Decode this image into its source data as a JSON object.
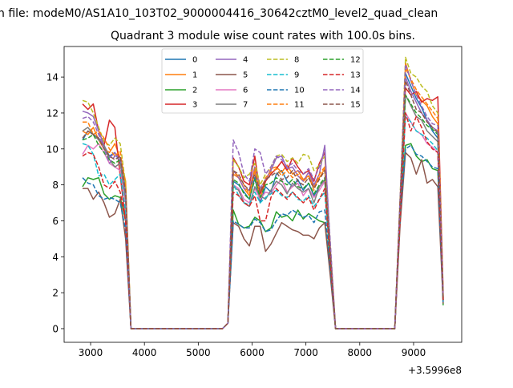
{
  "chart_data": {
    "type": "line",
    "suptitle": "n file: modeM0/AS1A10_103T02_9000004416_30642cztM0_level2_quad_clean",
    "title": "Quadrant 3 module wise count rates with 100.0s bins.",
    "xlabel": "",
    "ylabel": "",
    "x_offset_label": "+3.5996e8",
    "xlim": [
      2508,
      9894
    ],
    "ylim": [
      -0.76,
      15.7
    ],
    "xticks": [
      3000,
      4000,
      5000,
      6000,
      7000,
      8000,
      9000
    ],
    "yticks": [
      0,
      2,
      4,
      6,
      8,
      10,
      12,
      14
    ],
    "grid": false,
    "legend_position": "top-center",
    "x": [
      2850,
      2950,
      3050,
      3150,
      3250,
      3350,
      3450,
      3550,
      3650,
      3750,
      3850,
      3950,
      4050,
      4150,
      4250,
      4350,
      4450,
      4550,
      4650,
      4750,
      4850,
      4950,
      5050,
      5150,
      5250,
      5350,
      5450,
      5550,
      5650,
      5750,
      5850,
      5950,
      6050,
      6150,
      6250,
      6350,
      6450,
      6550,
      6650,
      6750,
      6850,
      6950,
      7050,
      7150,
      7250,
      7350,
      7450,
      7550,
      7650,
      7750,
      7850,
      7950,
      8050,
      8150,
      8250,
      8350,
      8450,
      8550,
      8650,
      8750,
      8850,
      8950,
      9050,
      9150,
      9250,
      9350,
      9450,
      9550
    ],
    "series": [
      {
        "name": "0",
        "color": "#1f77b4",
        "dashed": false,
        "values": [
          10.5,
          11.0,
          10.8,
          10.6,
          10.2,
          9.6,
          9.8,
          9.2,
          8.0,
          0,
          0,
          0,
          0,
          0,
          0,
          0,
          0,
          0,
          0,
          0,
          0,
          0,
          0,
          0,
          0,
          0,
          0,
          0.3,
          8.2,
          8.0,
          7.6,
          7.2,
          8.4,
          7.0,
          7.9,
          7.6,
          8.6,
          8.8,
          8.2,
          7.9,
          8.3,
          7.7,
          8.1,
          7.4,
          7.9,
          8.3,
          4.0,
          0,
          0,
          0,
          0,
          0,
          0,
          0,
          0,
          0,
          0,
          0,
          0,
          6.8,
          14.2,
          13.5,
          12.8,
          12.3,
          11.6,
          11.0,
          10.6,
          1.6
        ]
      },
      {
        "name": "1",
        "color": "#ff7f0e",
        "dashed": false,
        "values": [
          11.0,
          10.8,
          11.2,
          10.5,
          10.0,
          9.8,
          10.3,
          9.5,
          8.2,
          0,
          0,
          0,
          0,
          0,
          0,
          0,
          0,
          0,
          0,
          0,
          0,
          0,
          0,
          0,
          0,
          0,
          0,
          0.3,
          8.6,
          8.4,
          7.8,
          7.4,
          8.8,
          7.2,
          8.2,
          8.9,
          9.0,
          8.7,
          9.1,
          8.6,
          8.8,
          8.3,
          8.5,
          7.9,
          8.4,
          8.9,
          4.2,
          0,
          0,
          0,
          0,
          0,
          0,
          0,
          0,
          0,
          0,
          0,
          0,
          7.0,
          14.8,
          13.8,
          13.0,
          12.7,
          12.4,
          11.8,
          11.4,
          1.8
        ]
      },
      {
        "name": "2",
        "color": "#2ca02c",
        "dashed": false,
        "values": [
          7.9,
          8.4,
          8.3,
          8.4,
          7.5,
          7.2,
          7.4,
          7.3,
          6.0,
          0,
          0,
          0,
          0,
          0,
          0,
          0,
          0,
          0,
          0,
          0,
          0,
          0,
          0,
          0,
          0,
          0,
          0,
          0.3,
          6.6,
          5.8,
          5.6,
          5.7,
          6.2,
          6.0,
          5.4,
          5.6,
          6.5,
          6.2,
          6.3,
          6.0,
          6.6,
          6.1,
          6.4,
          6.2,
          6.0,
          5.9,
          3.5,
          0,
          0,
          0,
          0,
          0,
          0,
          0,
          0,
          0,
          0,
          0,
          0,
          6.5,
          10.2,
          10.3,
          9.6,
          9.3,
          9.4,
          8.9,
          8.8,
          1.3
        ]
      },
      {
        "name": "3",
        "color": "#d62728",
        "dashed": false,
        "values": [
          12.5,
          12.2,
          12.5,
          11.0,
          10.2,
          11.6,
          11.2,
          8.5,
          6.0,
          0,
          0,
          0,
          0,
          0,
          0,
          0,
          0,
          0,
          0,
          0,
          0,
          0,
          0,
          0,
          0,
          0,
          0,
          0.3,
          9.5,
          9.0,
          8.2,
          8.0,
          9.6,
          7.5,
          8.2,
          8.6,
          8.9,
          9.3,
          8.8,
          9.5,
          9.0,
          8.6,
          8.8,
          8.2,
          9.2,
          9.8,
          4.5,
          0,
          0,
          0,
          0,
          0,
          0,
          0,
          0,
          0,
          0,
          0,
          0,
          7.2,
          13.4,
          13.0,
          13.2,
          12.6,
          12.8,
          12.7,
          12.9,
          2.0
        ]
      },
      {
        "name": "4",
        "color": "#9467bd",
        "dashed": false,
        "values": [
          12.1,
          12.0,
          11.8,
          11.0,
          10.2,
          9.5,
          9.8,
          9.3,
          7.0,
          0,
          0,
          0,
          0,
          0,
          0,
          0,
          0,
          0,
          0,
          0,
          0,
          0,
          0,
          0,
          0,
          0,
          0,
          0.3,
          8.8,
          8.4,
          7.8,
          7.7,
          9.0,
          7.8,
          8.3,
          8.8,
          9.5,
          9.6,
          8.9,
          9.0,
          8.5,
          8.2,
          8.7,
          8.0,
          8.6,
          10.2,
          4.6,
          0,
          0,
          0,
          0,
          0,
          0,
          0,
          0,
          0,
          0,
          0,
          0,
          7.1,
          14.0,
          13.2,
          12.6,
          12.0,
          11.6,
          11.2,
          11.0,
          1.7
        ]
      },
      {
        "name": "5",
        "color": "#8c564b",
        "dashed": false,
        "values": [
          7.8,
          7.8,
          7.2,
          7.6,
          7.0,
          6.2,
          6.4,
          7.2,
          5.0,
          0,
          0,
          0,
          0,
          0,
          0,
          0,
          0,
          0,
          0,
          0,
          0,
          0,
          0,
          0,
          0,
          0,
          0,
          0.3,
          5.9,
          5.7,
          5.0,
          4.6,
          5.7,
          5.7,
          4.3,
          4.7,
          5.3,
          5.9,
          5.7,
          5.5,
          5.4,
          5.2,
          5.2,
          5.0,
          5.6,
          5.9,
          3.0,
          0,
          0,
          0,
          0,
          0,
          0,
          0,
          0,
          0,
          0,
          0,
          0,
          5.8,
          9.8,
          9.5,
          8.6,
          9.4,
          8.1,
          8.3,
          7.9,
          1.4
        ]
      },
      {
        "name": "6",
        "color": "#e377c2",
        "dashed": false,
        "values": [
          9.7,
          10.2,
          10.0,
          10.3,
          9.8,
          9.2,
          9.0,
          8.8,
          7.0,
          0,
          0,
          0,
          0,
          0,
          0,
          0,
          0,
          0,
          0,
          0,
          0,
          0,
          0,
          0,
          0,
          0,
          0,
          0.3,
          8.0,
          7.8,
          7.2,
          7.0,
          7.8,
          7.2,
          7.6,
          7.5,
          8.0,
          8.3,
          7.6,
          7.9,
          8.1,
          7.4,
          7.8,
          7.3,
          7.7,
          8.2,
          4.0,
          0,
          0,
          0,
          0,
          0,
          0,
          0,
          0,
          0,
          0,
          0,
          0,
          6.6,
          12.0,
          11.5,
          11.0,
          10.8,
          10.3,
          10.1,
          9.8,
          1.6
        ]
      },
      {
        "name": "7",
        "color": "#7f7f7f",
        "dashed": false,
        "values": [
          11.0,
          11.2,
          10.8,
          10.5,
          10.2,
          9.4,
          9.0,
          9.2,
          7.2,
          0,
          0,
          0,
          0,
          0,
          0,
          0,
          0,
          0,
          0,
          0,
          0,
          0,
          0,
          0,
          0,
          0,
          0,
          0.3,
          7.9,
          7.7,
          7.0,
          6.8,
          7.9,
          7.4,
          7.2,
          7.7,
          8.2,
          8.0,
          7.5,
          8.1,
          7.8,
          7.6,
          7.8,
          7.0,
          7.9,
          8.3,
          4.0,
          0,
          0,
          0,
          0,
          0,
          0,
          0,
          0,
          0,
          0,
          0,
          0,
          6.9,
          13.0,
          12.4,
          11.8,
          11.6,
          11.0,
          10.7,
          10.4,
          1.6
        ]
      },
      {
        "name": "8",
        "color": "#bcbd22",
        "dashed": true,
        "values": [
          12.7,
          12.6,
          12.0,
          11.2,
          10.4,
          10.2,
          10.6,
          10.3,
          8.0,
          0,
          0,
          0,
          0,
          0,
          0,
          0,
          0,
          0,
          0,
          0,
          0,
          0,
          0,
          0,
          0,
          0,
          0,
          0.3,
          9.4,
          9.0,
          8.4,
          8.6,
          9.2,
          8.0,
          8.6,
          9.0,
          9.6,
          9.7,
          9.3,
          9.5,
          9.2,
          9.7,
          9.6,
          8.8,
          9.1,
          9.6,
          4.8,
          0,
          0,
          0,
          0,
          0,
          0,
          0,
          0,
          0,
          0,
          0,
          0,
          7.4,
          15.1,
          14.2,
          14.0,
          13.5,
          13.2,
          12.4,
          12.0,
          1.9
        ]
      },
      {
        "name": "9",
        "color": "#17becf",
        "dashed": true,
        "values": [
          10.3,
          10.2,
          9.7,
          8.5,
          8.6,
          8.0,
          8.3,
          8.6,
          6.5,
          0,
          0,
          0,
          0,
          0,
          0,
          0,
          0,
          0,
          0,
          0,
          0,
          0,
          0,
          0,
          0,
          0,
          0,
          0.3,
          8.1,
          7.4,
          7.0,
          6.9,
          7.6,
          7.0,
          7.3,
          7.5,
          7.7,
          7.4,
          7.3,
          7.6,
          7.2,
          7.1,
          7.4,
          6.8,
          7.2,
          7.6,
          3.8,
          0,
          0,
          0,
          0,
          0,
          0,
          0,
          0,
          0,
          0,
          0,
          0,
          6.4,
          11.8,
          11.5,
          11.0,
          10.8,
          10.6,
          10.3,
          9.9,
          1.5
        ]
      },
      {
        "name": "10",
        "color": "#1f77b4",
        "dashed": true,
        "values": [
          8.4,
          8.1,
          8.0,
          7.4,
          7.2,
          7.3,
          7.2,
          7.0,
          5.5,
          0,
          0,
          0,
          0,
          0,
          0,
          0,
          0,
          0,
          0,
          0,
          0,
          0,
          0,
          0,
          0,
          0,
          0,
          0.3,
          6.0,
          5.8,
          5.6,
          5.6,
          6.1,
          5.9,
          5.4,
          5.5,
          6.0,
          6.4,
          6.3,
          6.6,
          6.4,
          6.2,
          6.3,
          5.9,
          6.5,
          6.6,
          3.4,
          0,
          0,
          0,
          0,
          0,
          0,
          0,
          0,
          0,
          0,
          0,
          0,
          6.3,
          10.0,
          10.2,
          9.7,
          9.6,
          9.3,
          9.0,
          8.9,
          1.4
        ]
      },
      {
        "name": "11",
        "color": "#ff7f0e",
        "dashed": true,
        "values": [
          11.5,
          11.5,
          10.8,
          11.0,
          10.6,
          10.0,
          9.6,
          9.9,
          7.8,
          0,
          0,
          0,
          0,
          0,
          0,
          0,
          0,
          0,
          0,
          0,
          0,
          0,
          0,
          0,
          0,
          0,
          0,
          0.3,
          8.7,
          8.5,
          8.0,
          7.5,
          8.9,
          7.6,
          8.4,
          8.7,
          8.9,
          8.5,
          8.8,
          8.4,
          8.6,
          8.2,
          8.5,
          7.7,
          8.6,
          9.0,
          4.3,
          0,
          0,
          0,
          0,
          0,
          0,
          0,
          0,
          0,
          0,
          0,
          0,
          7.1,
          14.5,
          13.9,
          13.3,
          12.9,
          12.5,
          12.1,
          11.7,
          1.7
        ]
      },
      {
        "name": "12",
        "color": "#2ca02c",
        "dashed": true,
        "values": [
          10.5,
          10.6,
          10.8,
          10.2,
          9.8,
          9.4,
          9.2,
          9.4,
          7.5,
          0,
          0,
          0,
          0,
          0,
          0,
          0,
          0,
          0,
          0,
          0,
          0,
          0,
          0,
          0,
          0,
          0,
          0,
          0.3,
          8.3,
          8.1,
          7.5,
          7.2,
          8.3,
          7.3,
          8.0,
          8.1,
          8.4,
          8.2,
          8.0,
          8.3,
          7.9,
          7.8,
          8.1,
          7.5,
          8.0,
          8.4,
          4.1,
          0,
          0,
          0,
          0,
          0,
          0,
          0,
          0,
          0,
          0,
          0,
          0,
          6.9,
          13.0,
          12.5,
          12.0,
          11.7,
          11.3,
          11.1,
          10.8,
          1.6
        ]
      },
      {
        "name": "13",
        "color": "#d62728",
        "dashed": true,
        "values": [
          9.6,
          9.8,
          9.7,
          9.0,
          8.0,
          7.8,
          8.2,
          7.6,
          6.0,
          0,
          0,
          0,
          0,
          0,
          0,
          0,
          0,
          0,
          0,
          0,
          0,
          0,
          0,
          0,
          0,
          0,
          0,
          0.3,
          7.6,
          7.4,
          7.0,
          6.8,
          7.4,
          6.0,
          6.0,
          7.3,
          7.8,
          7.5,
          7.2,
          7.6,
          7.3,
          7.0,
          7.3,
          6.6,
          7.2,
          7.8,
          3.8,
          0,
          0,
          0,
          0,
          0,
          0,
          0,
          0,
          0,
          0,
          0,
          0,
          6.2,
          12.0,
          11.0,
          11.8,
          11.2,
          10.4,
          10.0,
          9.8,
          1.5
        ]
      },
      {
        "name": "14",
        "color": "#9467bd",
        "dashed": true,
        "values": [
          11.7,
          11.8,
          11.5,
          10.8,
          10.0,
          9.2,
          9.6,
          9.5,
          7.5,
          0,
          0,
          0,
          0,
          0,
          0,
          0,
          0,
          0,
          0,
          0,
          0,
          0,
          0,
          0,
          0,
          0,
          0,
          0.3,
          10.5,
          9.8,
          8.6,
          8.2,
          10.0,
          9.8,
          8.6,
          9.0,
          9.6,
          9.4,
          9.0,
          9.2,
          8.8,
          8.6,
          8.9,
          8.3,
          9.0,
          10.0,
          4.9,
          0,
          0,
          0,
          0,
          0,
          0,
          0,
          0,
          0,
          0,
          0,
          0,
          7.3,
          14.7,
          13.8,
          13.0,
          12.4,
          11.8,
          11.4,
          11.3,
          1.8
        ]
      },
      {
        "name": "15",
        "color": "#8c564b",
        "dashed": true,
        "values": [
          10.6,
          11.0,
          10.8,
          10.6,
          10.0,
          9.6,
          9.4,
          9.6,
          7.6,
          0,
          0,
          0,
          0,
          0,
          0,
          0,
          0,
          0,
          0,
          0,
          0,
          0,
          0,
          0,
          0,
          0,
          0,
          0.3,
          8.8,
          8.6,
          8.0,
          7.7,
          8.6,
          7.6,
          8.3,
          8.5,
          8.7,
          8.3,
          8.4,
          8.8,
          8.2,
          8.0,
          8.4,
          7.8,
          8.3,
          8.8,
          4.3,
          0,
          0,
          0,
          0,
          0,
          0,
          0,
          0,
          0,
          0,
          0,
          0,
          7.0,
          13.8,
          13.0,
          12.2,
          12.0,
          11.5,
          11.2,
          10.9,
          1.7
        ]
      }
    ]
  }
}
